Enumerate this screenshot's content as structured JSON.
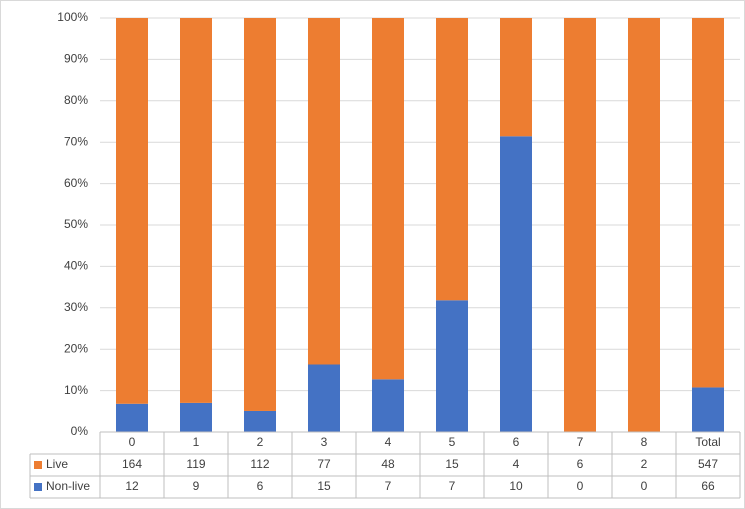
{
  "chart_data": {
    "type": "bar",
    "stacking": "percent",
    "categories": [
      "0",
      "1",
      "2",
      "3",
      "4",
      "5",
      "6",
      "7",
      "8",
      "Total"
    ],
    "series": [
      {
        "name": "Non-live",
        "color": "#4472c4",
        "values": [
          12,
          9,
          6,
          15,
          7,
          7,
          10,
          0,
          0,
          66
        ]
      },
      {
        "name": "Live",
        "color": "#ed7d31",
        "values": [
          164,
          119,
          112,
          77,
          48,
          15,
          4,
          6,
          2,
          547
        ]
      }
    ],
    "ylim": [
      0,
      100
    ],
    "yticks": [
      {
        "value": 0,
        "label": "0%"
      },
      {
        "value": 10,
        "label": "10%"
      },
      {
        "value": 20,
        "label": "20%"
      },
      {
        "value": 30,
        "label": "30%"
      },
      {
        "value": 40,
        "label": "40%"
      },
      {
        "value": 50,
        "label": "50%"
      },
      {
        "value": 60,
        "label": "60%"
      },
      {
        "value": 70,
        "label": "70%"
      },
      {
        "value": 80,
        "label": "80%"
      },
      {
        "value": 90,
        "label": "90%"
      },
      {
        "value": 100,
        "label": "100%"
      }
    ],
    "grid": true,
    "data_table": true
  }
}
